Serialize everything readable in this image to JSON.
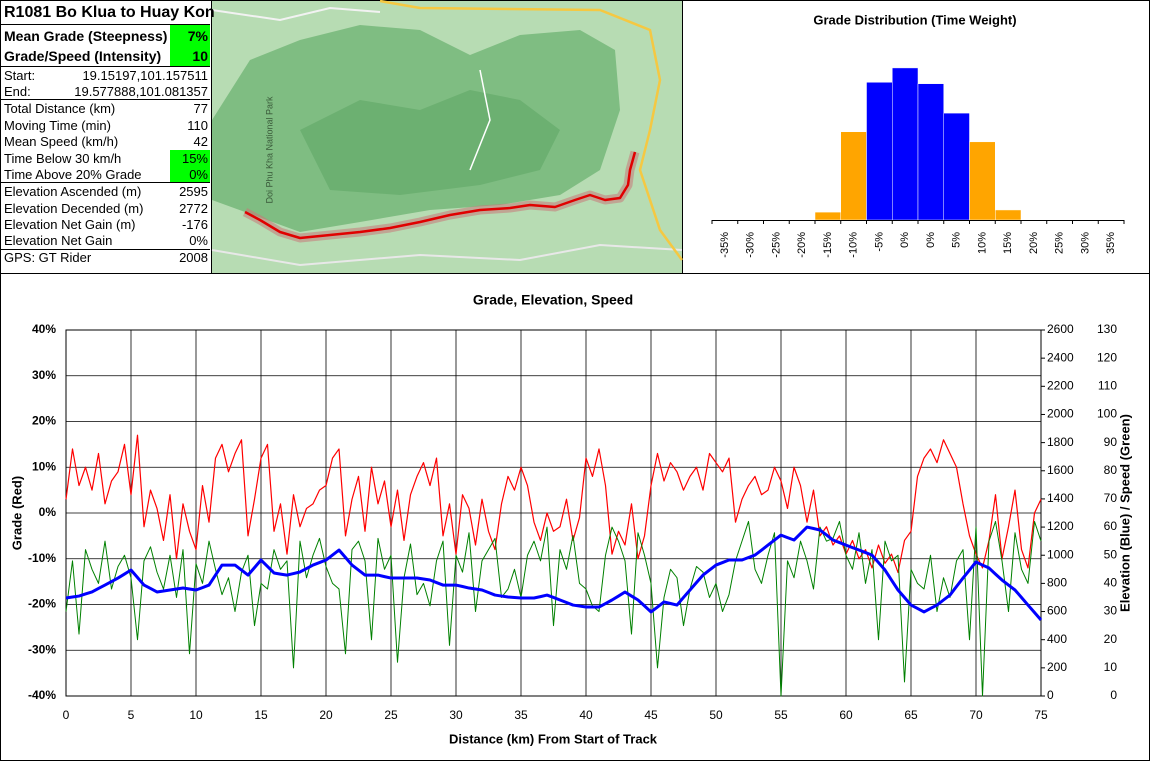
{
  "table": {
    "title": "R1081 Bo Klua to Huay Kon",
    "rows": [
      [
        "Mean Grade (Steepness)",
        "7%"
      ],
      [
        "Grade/Speed (Intensity)",
        "10"
      ],
      [
        "Start:",
        "19.15197,101.157511"
      ],
      [
        "End:",
        "19.577888,101.081357"
      ],
      [
        "Total Distance (km)",
        "77"
      ],
      [
        "Moving Time (min)",
        "110"
      ],
      [
        "Mean Speed (km/h)",
        "42"
      ],
      [
        "Time Below 30 km/h",
        "15%"
      ],
      [
        "Time Above 20% Grade",
        "0%"
      ],
      [
        "Elevation Ascended (m)",
        "2595"
      ],
      [
        "Elevation Decended (m)",
        "2772"
      ],
      [
        "Elevation Net Gain (m)",
        "-176"
      ],
      [
        "Elevation Net Gain",
        "0%"
      ],
      [
        "GPS: GT Rider",
        "2008"
      ]
    ]
  },
  "map": {
    "labels": [
      "Doi Phu Kha National Park"
    ]
  },
  "chart_data": [
    {
      "type": "bar",
      "title": "Grade Distribution (Time Weight)",
      "categories": [
        "-35%",
        "-30%",
        "-25%",
        "-20%",
        "-15%",
        "-10%",
        "-5%",
        "0%",
        "0%",
        "5%",
        "10%",
        "15%",
        "20%",
        "25%",
        "30%",
        "35%"
      ],
      "values": [
        0,
        0,
        0,
        0,
        1.1,
        12.3,
        19.2,
        21.2,
        19.0,
        14.9,
        10.9,
        1.4,
        0,
        0,
        0,
        0
      ],
      "colors": [
        "#ffa500",
        "#ffa500",
        "#ffa500",
        "#ffa500",
        "#ffa500",
        "#ffa500",
        "#0000ff",
        "#0000ff",
        "#0000ff",
        "#0000ff",
        "#ffa500",
        "#ffa500",
        "#ffa500",
        "#ffa500",
        "#ffa500",
        "#ffa500"
      ],
      "ylim": [
        0,
        23
      ]
    },
    {
      "type": "line",
      "title": "Grade, Elevation, Speed",
      "x_label": "Distance (km) From Start of Track",
      "y_label": "Grade (Red)",
      "y2_label": "Elevation (Blue) / Speed (Green)",
      "xlim": [
        0,
        75
      ],
      "xticks": [
        0,
        5,
        10,
        15,
        20,
        25,
        30,
        35,
        40,
        45,
        50,
        55,
        60,
        65,
        70,
        75
      ],
      "ylim": [
        -40,
        40
      ],
      "yticks": [
        {
          "value": -40,
          "label": "-40%"
        },
        {
          "value": -30,
          "label": "-30%"
        },
        {
          "value": -20,
          "label": "-20%"
        },
        {
          "value": -10,
          "label": "-10%"
        },
        {
          "value": 0,
          "label": "0%"
        },
        {
          "value": 10,
          "label": "10%"
        },
        {
          "value": 20,
          "label": "20%"
        },
        {
          "value": 30,
          "label": "30%"
        },
        {
          "value": 40,
          "label": "40%"
        }
      ],
      "y2lim": [
        0,
        2600
      ],
      "y2ticks": [
        0,
        200,
        400,
        600,
        800,
        1000,
        1200,
        1400,
        1600,
        1800,
        2000,
        2200,
        2400,
        2600
      ],
      "y3lim": [
        0,
        130
      ],
      "y3ticks": [
        0,
        10,
        20,
        30,
        40,
        50,
        60,
        70,
        80,
        90,
        100,
        110,
        120,
        130
      ],
      "grid": true,
      "x": [
        0,
        0.5,
        1,
        1.5,
        2,
        2.5,
        3,
        3.5,
        4,
        4.5,
        5,
        5.5,
        6,
        6.5,
        7,
        7.5,
        8,
        8.5,
        9,
        9.5,
        10,
        10.5,
        11,
        11.5,
        12,
        12.5,
        13,
        13.5,
        14,
        14.5,
        15,
        15.5,
        16,
        16.5,
        17,
        17.5,
        18,
        18.5,
        19,
        19.5,
        20,
        20.5,
        21,
        21.5,
        22,
        22.5,
        23,
        23.5,
        24,
        24.5,
        25,
        25.5,
        26,
        26.5,
        27,
        27.5,
        28,
        28.5,
        29,
        29.5,
        30,
        30.5,
        31,
        31.5,
        32,
        32.5,
        33,
        33.5,
        34,
        34.5,
        35,
        35.5,
        36,
        36.5,
        37,
        37.5,
        38,
        38.5,
        39,
        39.5,
        40,
        40.5,
        41,
        41.5,
        42,
        42.5,
        43,
        43.5,
        44,
        44.5,
        45,
        45.5,
        46,
        46.5,
        47,
        47.5,
        48,
        48.5,
        49,
        49.5,
        50,
        50.5,
        51,
        51.5,
        52,
        52.5,
        53,
        53.5,
        54,
        54.5,
        55,
        55.5,
        56,
        56.5,
        57,
        57.5,
        58,
        58.5,
        59,
        59.5,
        60,
        60.5,
        61,
        61.5,
        62,
        62.5,
        63,
        63.5,
        64,
        64.5,
        65,
        65.5,
        66,
        66.5,
        67,
        67.5,
        68,
        68.5,
        69,
        69.5,
        70,
        70.5,
        71,
        71.5,
        72,
        72.5,
        73,
        73.5,
        74,
        74.5,
        75
      ],
      "series": [
        {
          "name": "Grade",
          "color": "#ff0000",
          "axis": "y",
          "values": [
            3,
            14,
            6,
            10,
            5,
            13,
            2,
            7,
            9,
            15,
            4,
            17,
            -3,
            5,
            1,
            -6,
            4,
            -10,
            2,
            -4,
            -8,
            6,
            -2,
            12,
            15,
            9,
            13,
            16,
            -5,
            3,
            12,
            15,
            -4,
            2,
            -9,
            4,
            -3,
            1,
            2,
            5,
            6,
            12,
            14,
            -5,
            3,
            8,
            -4,
            10,
            2,
            7,
            -3,
            5,
            -6,
            4,
            8,
            11,
            6,
            12,
            -5,
            2,
            -9,
            4,
            1,
            -7,
            3,
            -4,
            -8,
            2,
            8,
            5,
            10,
            6,
            -2,
            -6,
            0,
            -4,
            -3,
            3,
            -6,
            -1,
            12,
            8,
            14,
            6,
            -9,
            -4,
            -7,
            2,
            -10,
            -5,
            6,
            13,
            7,
            11,
            9,
            5,
            8,
            10,
            5,
            13,
            11,
            9,
            12,
            -2,
            3,
            6,
            8,
            4,
            5,
            10,
            7,
            1,
            10,
            6,
            -2,
            5,
            -5,
            -3,
            -7,
            -5,
            -9,
            -6,
            -10,
            -8,
            -12,
            -7,
            -11,
            -9,
            -13,
            -6,
            -4,
            8,
            12,
            14,
            11,
            16,
            13,
            10,
            2,
            -5,
            -9,
            -12,
            -6,
            4,
            -10,
            -3,
            5,
            -8,
            -12,
            0,
            3
          ]
        },
        {
          "name": "Speed",
          "color": "#008000",
          "axis": "y3",
          "values": [
            30,
            48,
            22,
            52,
            45,
            40,
            55,
            38,
            46,
            50,
            42,
            20,
            48,
            53,
            44,
            38,
            50,
            35,
            52,
            15,
            47,
            40,
            55,
            45,
            36,
            42,
            30,
            44,
            50,
            25,
            40,
            38,
            52,
            45,
            48,
            10,
            55,
            42,
            50,
            56,
            46,
            40,
            38,
            15,
            52,
            55,
            48,
            20,
            56,
            45,
            50,
            12,
            42,
            54,
            36,
            40,
            32,
            48,
            55,
            18,
            50,
            44,
            58,
            30,
            48,
            52,
            56,
            35,
            38,
            45,
            35,
            50,
            55,
            48,
            60,
            25,
            52,
            45,
            57,
            40,
            38,
            32,
            30,
            50,
            60,
            55,
            48,
            22,
            58,
            50,
            40,
            10,
            35,
            45,
            42,
            25,
            38,
            46,
            44,
            35,
            40,
            30,
            36,
            48,
            55,
            62,
            45,
            40,
            50,
            58,
            0,
            48,
            42,
            55,
            48,
            38,
            60,
            55,
            56,
            62,
            50,
            45,
            58,
            40,
            52,
            20,
            55,
            48,
            50,
            5,
            45,
            40,
            38,
            50,
            30,
            42,
            35,
            48,
            52,
            20,
            60,
            0,
            55,
            62,
            48,
            30,
            58,
            45,
            40,
            62,
            55
          ]
        },
        {
          "name": "Elevation",
          "color": "#0000ff",
          "axis": "y2",
          "values": [
            696,
            703,
            710,
            725,
            739,
            764,
            788,
            813,
            838,
            866,
            895,
            842,
            788,
            764,
            739,
            746,
            753,
            760,
            767,
            760,
            753,
            770,
            788,
            859,
            930,
            930,
            930,
            895,
            859,
            912,
            966,
            920,
            874,
            866,
            859,
            870,
            881,
            905,
            930,
            948,
            966,
            1001,
            1037,
            984,
            930,
            895,
            859,
            859,
            859,
            848,
            838,
            838,
            838,
            838,
            838,
            831,
            824,
            806,
            788,
            788,
            788,
            778,
            767,
            760,
            753,
            735,
            717,
            710,
            703,
            700,
            696,
            696,
            696,
            706,
            717,
            700,
            682,
            664,
            646,
            639,
            632,
            632,
            632,
            657,
            682,
            710,
            739,
            710,
            682,
            640,
            597,
            632,
            668,
            657,
            646,
            700,
            753,
            806,
            859,
            895,
            930,
            948,
            966,
            966,
            966,
            984,
            1001,
            1036,
            1072,
            1108,
            1143,
            1125,
            1108,
            1154,
            1200,
            1190,
            1179,
            1144,
            1108,
            1090,
            1072,
            1054,
            1037,
            1019,
            1001,
            948,
            895,
            824,
            753,
            700,
            646,
            622,
            597,
            622,
            646,
            682,
            717,
            778,
            838,
            895,
            952,
            930,
            909,
            866,
            824,
            788,
            753,
            700,
            646,
            593,
            540
          ]
        }
      ]
    }
  ]
}
